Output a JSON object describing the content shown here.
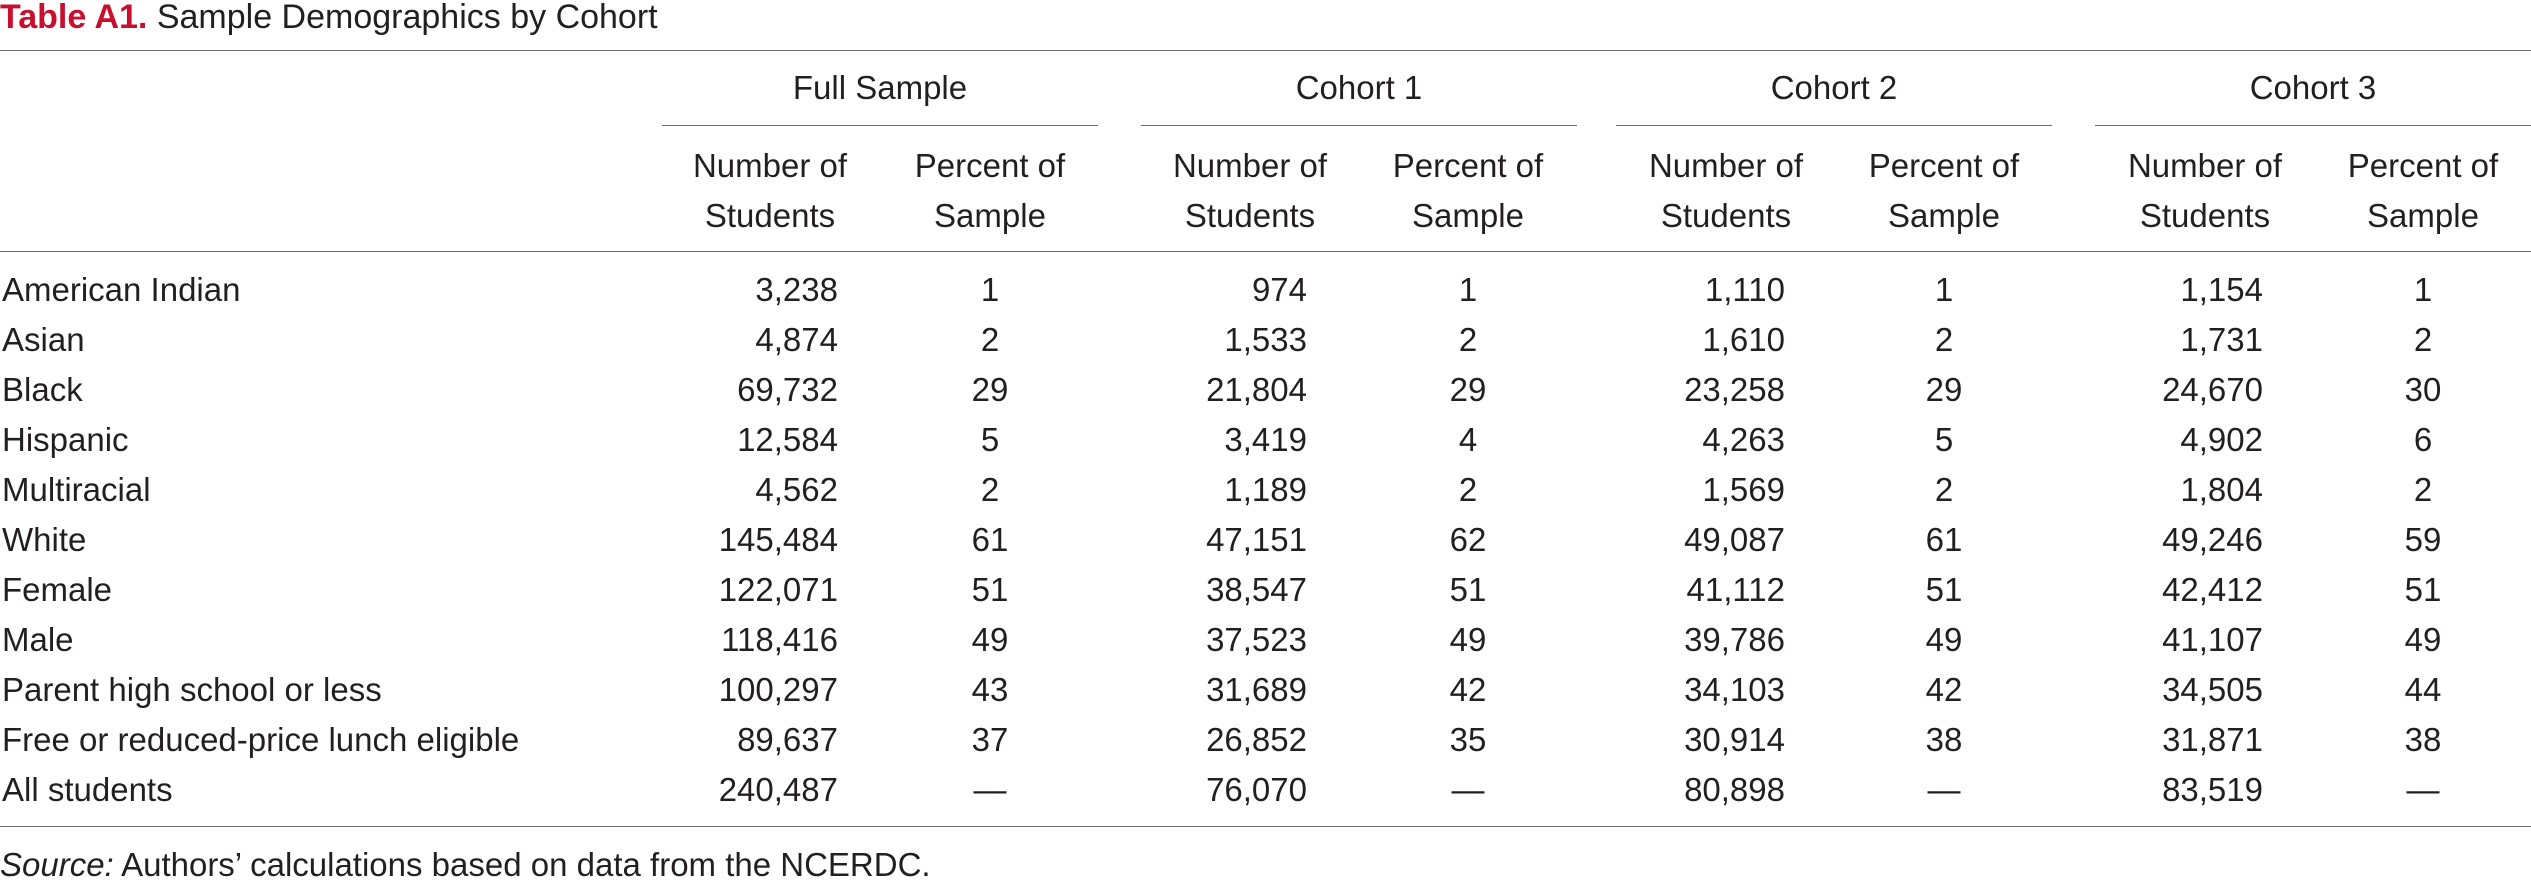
{
  "title": {
    "label": "Table A1.",
    "text": "Sample Demographics by Cohort"
  },
  "groups": [
    "Full Sample",
    "Cohort 1",
    "Cohort 2",
    "Cohort 3"
  ],
  "column_headers": {
    "count": [
      "Number of",
      "Students"
    ],
    "percent": [
      "Percent of",
      "Sample"
    ]
  },
  "rows": [
    {
      "label": "American Indian",
      "values": [
        "3,238",
        "1",
        "974",
        "1",
        "1,110",
        "1",
        "1,154",
        "1"
      ]
    },
    {
      "label": "Asian",
      "values": [
        "4,874",
        "2",
        "1,533",
        "2",
        "1,610",
        "2",
        "1,731",
        "2"
      ]
    },
    {
      "label": "Black",
      "values": [
        "69,732",
        "29",
        "21,804",
        "29",
        "23,258",
        "29",
        "24,670",
        "30"
      ]
    },
    {
      "label": "Hispanic",
      "values": [
        "12,584",
        "5",
        "3,419",
        "4",
        "4,263",
        "5",
        "4,902",
        "6"
      ]
    },
    {
      "label": "Multiracial",
      "values": [
        "4,562",
        "2",
        "1,189",
        "2",
        "1,569",
        "2",
        "1,804",
        "2"
      ]
    },
    {
      "label": "White",
      "values": [
        "145,484",
        "61",
        "47,151",
        "62",
        "49,087",
        "61",
        "49,246",
        "59"
      ]
    },
    {
      "label": "Female",
      "values": [
        "122,071",
        "51",
        "38,547",
        "51",
        "41,112",
        "51",
        "42,412",
        "51"
      ]
    },
    {
      "label": "Male",
      "values": [
        "118,416",
        "49",
        "37,523",
        "49",
        "39,786",
        "49",
        "41,107",
        "49"
      ]
    },
    {
      "label": "Parent high school or less",
      "values": [
        "100,297",
        "43",
        "31,689",
        "42",
        "34,103",
        "42",
        "34,505",
        "44"
      ]
    },
    {
      "label": "Free or reduced-price lunch eligible",
      "values": [
        "89,637",
        "37",
        "26,852",
        "35",
        "30,914",
        "38",
        "31,871",
        "38"
      ]
    },
    {
      "label": "All students",
      "values": [
        "240,487",
        "—",
        "76,070",
        "—",
        "80,898",
        "—",
        "83,519",
        "—"
      ]
    }
  ],
  "source": {
    "label": "Source:",
    "text": " Authors’ calculations based on data from the NCERDC."
  },
  "colors": {
    "title_accent": "#c8102e",
    "text": "#231f20",
    "rule": "#6e6e6e"
  }
}
